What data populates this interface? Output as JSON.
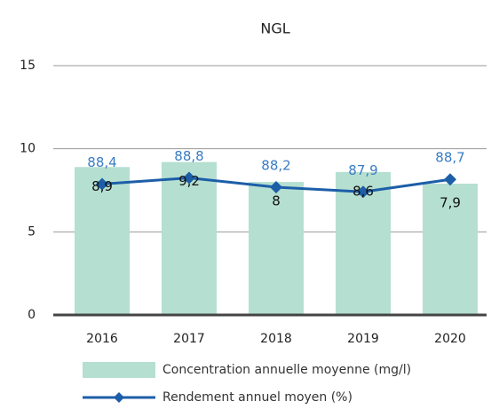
{
  "chart_data": {
    "type": "bar",
    "title": "NGL",
    "categories": [
      "2016",
      "2017",
      "2018",
      "2019",
      "2020"
    ],
    "ylim": [
      0,
      15
    ],
    "yticks": [
      0,
      5,
      10,
      15
    ],
    "grid": true,
    "y2lim": [
      80,
      96
    ],
    "series": [
      {
        "name": "Concentration annuelle moyenne (mg/l)",
        "type": "bar",
        "color": "#b5dfd0",
        "values": [
          8.9,
          9.2,
          8,
          8.6,
          7.9
        ],
        "value_labels": [
          "8,9",
          "9,2",
          "8",
          "8,6",
          "7,9"
        ]
      },
      {
        "name": "Rendement annuel moyen (%)",
        "type": "line",
        "axis": "y2",
        "color": "#1c5ea8",
        "values": [
          88.4,
          88.8,
          88.2,
          87.9,
          88.7
        ],
        "value_labels": [
          "88,4",
          "88,8",
          "88,2",
          "87,9",
          "88,7"
        ]
      }
    ]
  }
}
